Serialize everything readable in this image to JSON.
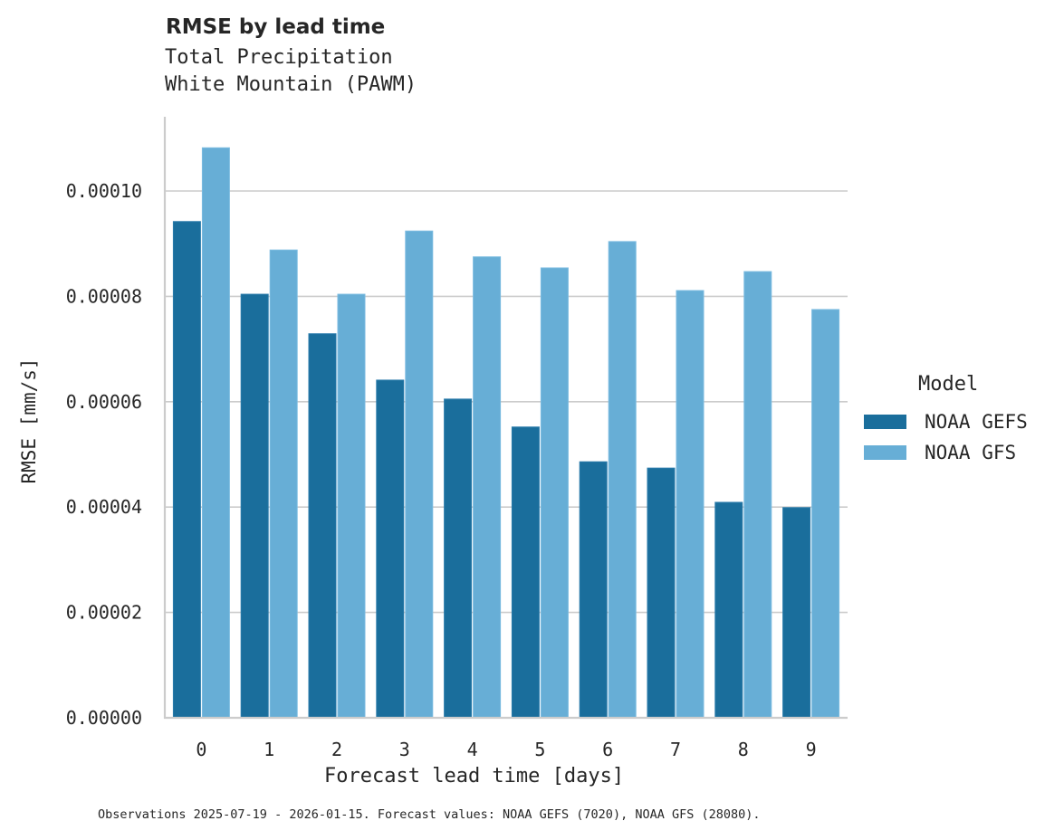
{
  "header": {
    "title": "RMSE by lead time",
    "subtitle_line1": "Total Precipitation",
    "subtitle_line2": "White Mountain (PAWM)"
  },
  "axes": {
    "xlabel": "Forecast lead time [days]",
    "ylabel": "RMSE [mm/s]",
    "yticks": [
      "0.00000",
      "0.00002",
      "0.00004",
      "0.00006",
      "0.00008",
      "0.00010"
    ],
    "xticks": [
      "0",
      "1",
      "2",
      "3",
      "4",
      "5",
      "6",
      "7",
      "8",
      "9"
    ]
  },
  "legend": {
    "title": "Model",
    "items": [
      {
        "label": "NOAA GEFS",
        "color": "#1a6e9c"
      },
      {
        "label": "NOAA GFS",
        "color": "#67aed6"
      }
    ]
  },
  "footnote": "Observations 2025-07-19 - 2026-01-15. Forecast values: NOAA GEFS (7020), NOAA GFS (28080).",
  "colors": {
    "gefs": "#1a6e9c",
    "gfs": "#67aed6",
    "grid": "#cccccc",
    "axis": "#cccccc",
    "text": "#262626"
  },
  "chart_data": {
    "type": "bar",
    "title": "RMSE by lead time",
    "subtitle": "Total Precipitation — White Mountain (PAWM)",
    "xlabel": "Forecast lead time [days]",
    "ylabel": "RMSE [mm/s]",
    "categories": [
      "0",
      "1",
      "2",
      "3",
      "4",
      "5",
      "6",
      "7",
      "8",
      "9"
    ],
    "series": [
      {
        "name": "NOAA GEFS",
        "values": [
          9.42e-05,
          8.04e-05,
          7.29e-05,
          6.41e-05,
          6.05e-05,
          5.52e-05,
          4.86e-05,
          4.74e-05,
          4.09e-05,
          3.99e-05
        ]
      },
      {
        "name": "NOAA GFS",
        "values": [
          0.0001082,
          8.88e-05,
          8.04e-05,
          9.24e-05,
          8.75e-05,
          8.54e-05,
          9.04e-05,
          8.11e-05,
          8.47e-05,
          7.75e-05
        ]
      }
    ],
    "ylim": [
      0,
      0.000114
    ],
    "yticks": [
      0,
      2e-05,
      4e-05,
      6e-05,
      8e-05,
      0.0001
    ],
    "grid": "horizontal",
    "legend_position": "right",
    "legend_title": "Model"
  }
}
